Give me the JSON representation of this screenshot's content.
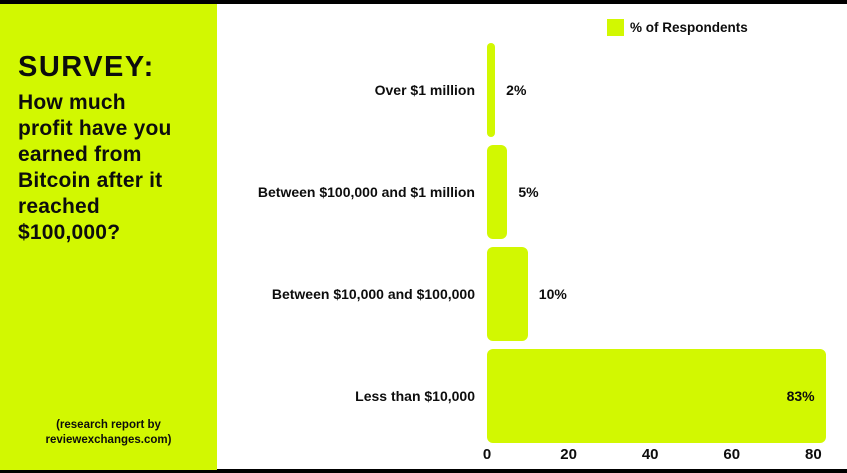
{
  "colors": {
    "accent": "#D2F801",
    "text": "#0d0d0d",
    "background": "#ffffff",
    "border": "#000000"
  },
  "sidebar": {
    "heading": "SURVEY:",
    "question": "How much\nprofit have you\nearned from\nBitcoin after it\nreached\n$100,000?",
    "footnote": "(research report by\nreviewexchanges.com)"
  },
  "legend": {
    "label": "% of Respondents",
    "swatch_color": "#D2F801"
  },
  "chart_data": {
    "type": "bar",
    "orientation": "horizontal",
    "title": "",
    "xlabel": "",
    "ylabel": "",
    "categories": [
      "Over $1 million",
      "Between $100,000 and $1 million",
      "Between $10,000 and $100,000",
      "Less than $10,000"
    ],
    "series": [
      {
        "name": "% of Respondents",
        "values": [
          2,
          5,
          10,
          83
        ]
      }
    ],
    "value_labels": [
      "2%",
      "5%",
      "10%",
      "83%"
    ],
    "xlim": [
      0,
      88
    ],
    "xticks": [
      0,
      20,
      40,
      60,
      80
    ],
    "bar_color": "#D2F801",
    "grid": false,
    "legend_position": "top-right"
  }
}
